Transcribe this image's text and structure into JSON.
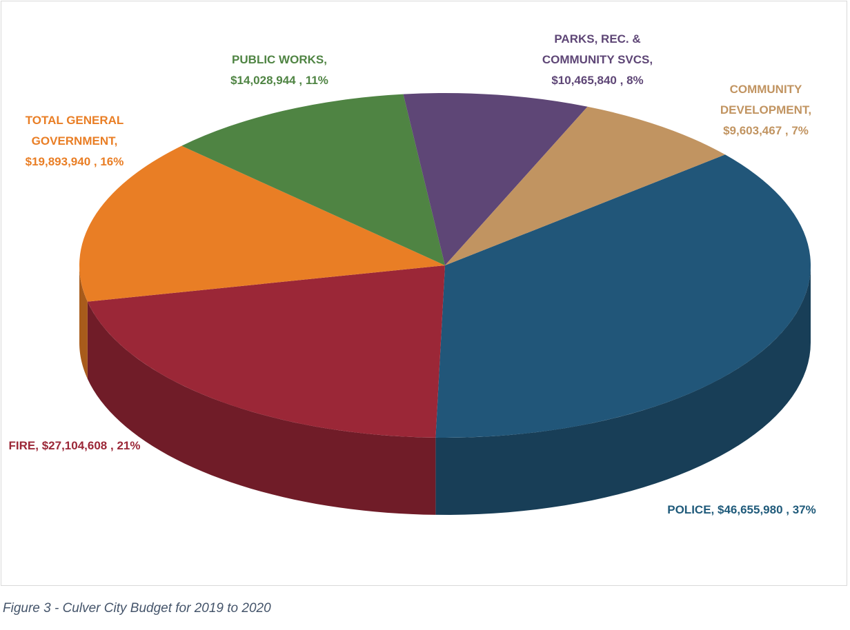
{
  "chart_data": {
    "type": "pie",
    "categories": [
      "POLICE,",
      "FIRE,",
      "TOTAL GENERAL GOVERNMENT,",
      "PUBLIC WORKS,",
      "PARKS, REC. & COMMUNITY SVCS,",
      "COMMUNITY DEVELOPMENT,"
    ],
    "values": [
      46655980,
      27104608,
      19893940,
      14028944,
      10465840,
      9603467
    ],
    "value_labels": [
      "$46,655,980 ,",
      "$27,104,608 ,",
      "$19,893,940 ,",
      "$14,028,944 ,",
      "$10,465,840 ,",
      "$9,603,467 ,"
    ],
    "percents": [
      37,
      21,
      16,
      11,
      8,
      7
    ],
    "percent_labels": [
      "37%",
      "21%",
      "16%",
      "11%",
      "8%",
      "7%"
    ],
    "colors": [
      "#215679",
      "#9b2737",
      "#e97e25",
      "#4f8443",
      "#5e4676",
      "#c19461"
    ],
    "caption": "Figure 3 - Culver City Budget for 2019 to 2020"
  }
}
